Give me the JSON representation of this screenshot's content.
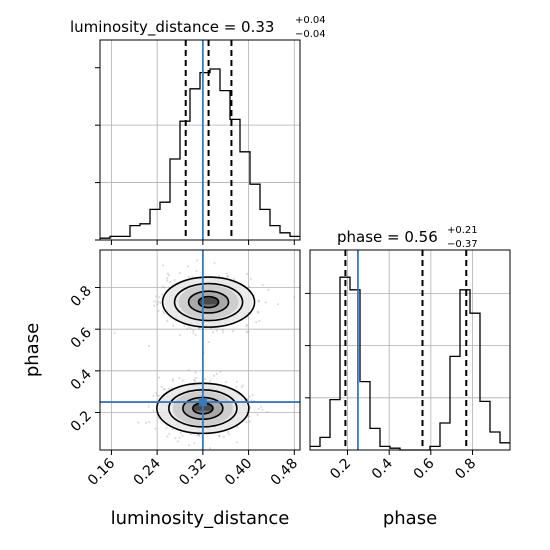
{
  "chart_data": {
    "type": "corner",
    "parameters": [
      "luminosity_distance",
      "phase"
    ],
    "truths": {
      "luminosity_distance": 0.32,
      "phase": 0.25
    },
    "luminosity_distance": {
      "title_main": "luminosity_distance = 0.33",
      "title_sup": "+0.04",
      "title_sub": "−0.04",
      "xlim": [
        0.14,
        0.49
      ],
      "ticks": [
        0.16,
        0.24,
        0.32,
        0.4,
        0.48
      ],
      "tick_labels": [
        "0.16",
        "0.24",
        "0.32",
        "0.40",
        "0.48"
      ],
      "quantiles": [
        0.29,
        0.33,
        0.37
      ],
      "histogram": {
        "bin_edges": [
          0.14,
          0.1575,
          0.175,
          0.1925,
          0.21,
          0.2275,
          0.245,
          0.2625,
          0.28,
          0.2975,
          0.315,
          0.3325,
          0.35,
          0.3675,
          0.385,
          0.4025,
          0.42,
          0.4375,
          0.455,
          0.4725,
          0.49
        ],
        "counts": [
          0.01,
          0.02,
          0.02,
          0.08,
          0.09,
          0.17,
          0.21,
          0.45,
          0.66,
          0.84,
          0.93,
          0.95,
          0.83,
          0.67,
          0.49,
          0.31,
          0.17,
          0.08,
          0.04,
          0.02
        ]
      },
      "xlabel": "luminosity_distance"
    },
    "phase": {
      "title_main": "phase = 0.56",
      "title_sup": "+0.21",
      "title_sub": "−0.37",
      "xlim": [
        0.02,
        0.98
      ],
      "ticks": [
        0.2,
        0.4,
        0.6,
        0.8
      ],
      "tick_labels": [
        "0.2",
        "0.4",
        "0.6",
        "0.8"
      ],
      "quantiles": [
        0.19,
        0.56,
        0.77
      ],
      "histogram": {
        "bin_edges": [
          0.02,
          0.068,
          0.116,
          0.164,
          0.212,
          0.26,
          0.308,
          0.356,
          0.404,
          0.452,
          0.5,
          0.548,
          0.596,
          0.644,
          0.692,
          0.74,
          0.788,
          0.836,
          0.884,
          0.932,
          0.98
        ],
        "counts": [
          0.02,
          0.07,
          0.28,
          0.96,
          0.89,
          0.38,
          0.12,
          0.02,
          0.01,
          0.0,
          0.0,
          0.0,
          0.02,
          0.15,
          0.52,
          0.89,
          0.76,
          0.27,
          0.1,
          0.04
        ]
      },
      "xlabel": "phase"
    },
    "joint": {
      "x": "luminosity_distance",
      "y": "phase",
      "ylim": [
        0.02,
        0.98
      ],
      "yticks": [
        0.2,
        0.4,
        0.6,
        0.8
      ],
      "ytick_labels": [
        "0.2",
        "0.4",
        "0.6",
        "0.8"
      ],
      "ylabel": "phase",
      "modes": [
        {
          "x": 0.33,
          "y": 0.73,
          "sx": 0.035,
          "sy": 0.055
        },
        {
          "x": 0.32,
          "y": 0.22,
          "sx": 0.035,
          "sy": 0.055
        }
      ]
    }
  }
}
